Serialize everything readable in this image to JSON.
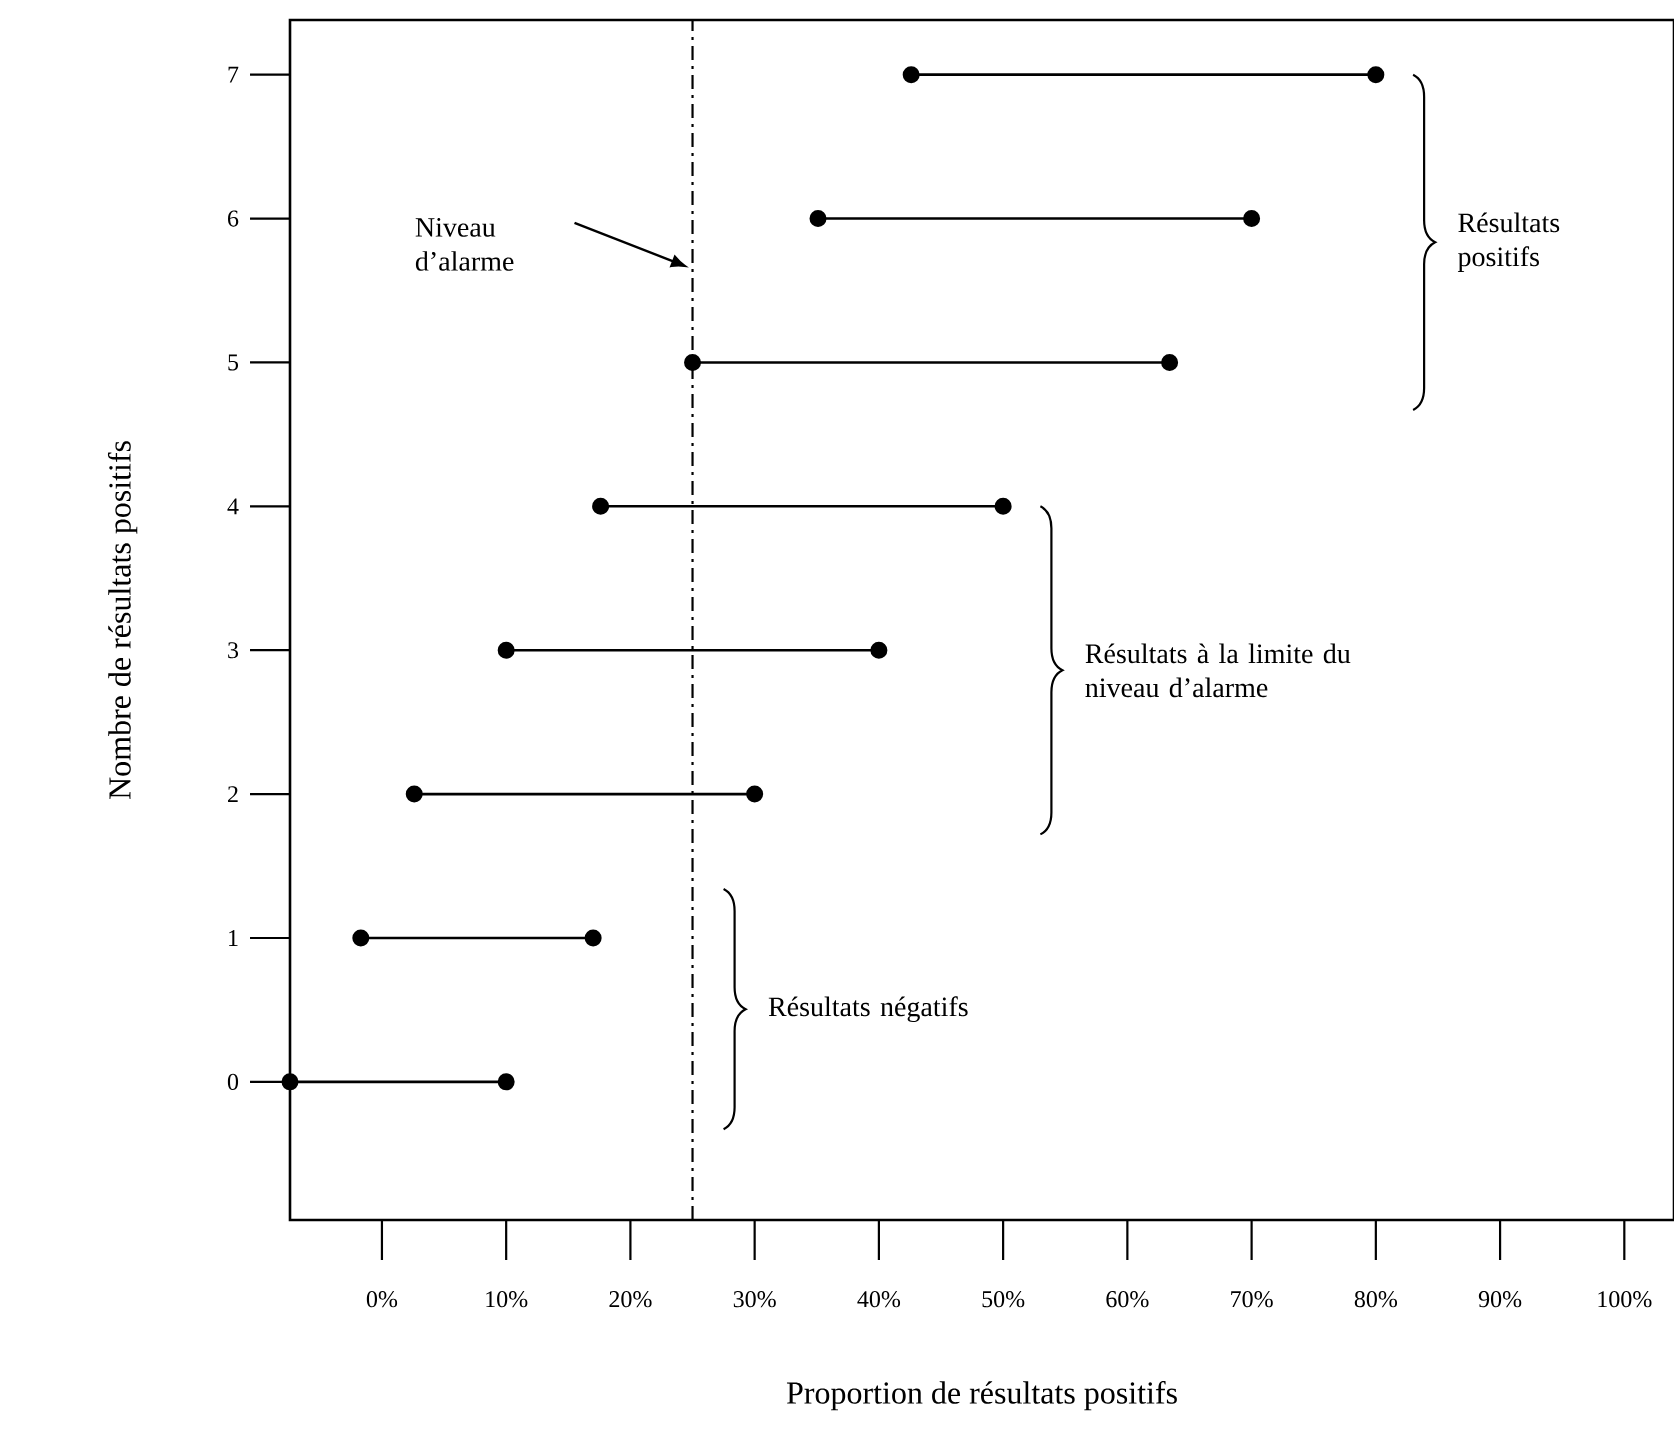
{
  "chart_data": {
    "type": "line",
    "xlabel": "Proportion de résultats positifs",
    "ylabel": "Nombre de résultats positifs",
    "xlim": [
      -7.4,
      104
    ],
    "ylim": [
      -0.96,
      7.38
    ],
    "xticks": [
      {
        "value": 0,
        "label": "0%"
      },
      {
        "value": 10,
        "label": "10%"
      },
      {
        "value": 20,
        "label": "20%"
      },
      {
        "value": 30,
        "label": "30%"
      },
      {
        "value": 40,
        "label": "40%"
      },
      {
        "value": 50,
        "label": "50%"
      },
      {
        "value": 60,
        "label": "60%"
      },
      {
        "value": 70,
        "label": "70%"
      },
      {
        "value": 80,
        "label": "80%"
      },
      {
        "value": 90,
        "label": "90%"
      },
      {
        "value": 100,
        "label": "100%"
      }
    ],
    "yticks": [
      0,
      1,
      2,
      3,
      4,
      5,
      6,
      7
    ],
    "marker": "circle",
    "series": [
      {
        "color": "#000000",
        "x": [
          -7.4,
          10
        ],
        "values": [
          0,
          0
        ]
      },
      {
        "color": "#000000",
        "x": [
          -1.7,
          17
        ],
        "values": [
          1,
          1
        ]
      },
      {
        "color": "#000000",
        "x": [
          2.6,
          30
        ],
        "values": [
          2,
          2
        ]
      },
      {
        "color": "#000000",
        "x": [
          10,
          40
        ],
        "values": [
          3,
          3
        ]
      },
      {
        "color": "#000000",
        "x": [
          17.6,
          50
        ],
        "values": [
          4,
          4
        ]
      },
      {
        "color": "#000000",
        "x": [
          25,
          63.4
        ],
        "values": [
          5,
          5
        ]
      },
      {
        "color": "#000000",
        "x": [
          35.1,
          70
        ],
        "values": [
          6,
          6
        ]
      },
      {
        "color": "#000000",
        "x": [
          42.6,
          80
        ],
        "values": [
          7,
          7
        ]
      }
    ],
    "ref_lines": [
      {
        "axis": "x",
        "value": 25,
        "label": "Niveau d’alarme",
        "line_style": "dashdot",
        "color": "#000000"
      }
    ],
    "annotations": [
      "Résultats positifs",
      "Résultats à la limite du niveau d’alarme",
      "Résultats négatifs"
    ]
  }
}
